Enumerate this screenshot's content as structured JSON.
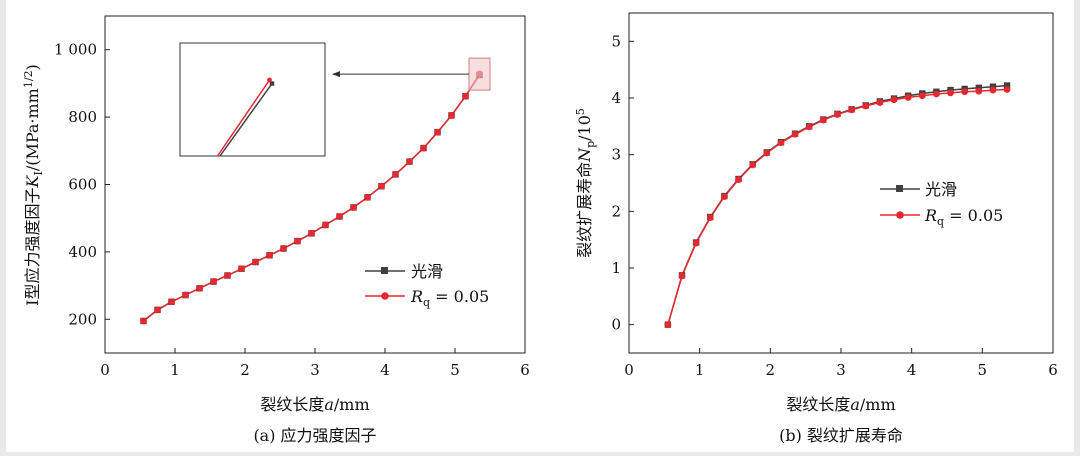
{
  "chart_data": [
    {
      "type": "line",
      "caption": "(a) 应力强度因子",
      "xlabel_main": "裂纹长度",
      "xlabel_var": "a",
      "xlabel_unit": "/mm",
      "ylabel_main": "I型应力强度因子",
      "ylabel_var": "K",
      "ylabel_sub": "I",
      "ylabel_unit": "/(MPa·mm",
      "ylabel_sup": "1/2",
      "ylabel_close": ")",
      "xlim": [
        0,
        6
      ],
      "ylim": [
        100,
        1100
      ],
      "xticks": [
        0,
        1,
        2,
        3,
        4,
        5,
        6
      ],
      "yticks": [
        200,
        400,
        600,
        800,
        1000
      ],
      "ytick_labels": [
        "200",
        "400",
        "600",
        "800",
        "1 000"
      ],
      "legend_placement": "lower-right",
      "series": [
        {
          "name": "光滑",
          "color": "#404040",
          "marker": "square",
          "x": [
            0.55,
            0.75,
            0.95,
            1.15,
            1.35,
            1.55,
            1.75,
            1.95,
            2.15,
            2.35,
            2.55,
            2.75,
            2.95,
            3.15,
            3.35,
            3.55,
            3.75,
            3.95,
            4.15,
            4.35,
            4.55,
            4.75,
            4.95,
            5.15,
            5.35
          ],
          "y": [
            195,
            228,
            252,
            272,
            292,
            312,
            330,
            350,
            370,
            390,
            410,
            432,
            455,
            480,
            505,
            532,
            562,
            595,
            630,
            668,
            708,
            755,
            805,
            862,
            925
          ]
        },
        {
          "name_var": "R",
          "name_sub": "q",
          "name_rest": " = 0.05",
          "color": "#e8282f",
          "marker": "circle",
          "x": [
            0.55,
            0.75,
            0.95,
            1.15,
            1.35,
            1.55,
            1.75,
            1.95,
            2.15,
            2.35,
            2.55,
            2.75,
            2.95,
            3.15,
            3.35,
            3.55,
            3.75,
            3.95,
            4.15,
            4.35,
            4.55,
            4.75,
            4.95,
            5.15,
            5.35
          ],
          "y": [
            195,
            228,
            252,
            272,
            292,
            312,
            330,
            350,
            370,
            390,
            410,
            432,
            455,
            480,
            505,
            532,
            562,
            595,
            630,
            668,
            708,
            755,
            805,
            862,
            928
          ]
        }
      ],
      "inset": {
        "zoom_x": [
          5.2,
          5.5
        ],
        "zoom_y": [
          880,
          975
        ]
      }
    },
    {
      "type": "line",
      "caption": "(b) 裂纹扩展寿命",
      "xlabel_main": "裂纹长度",
      "xlabel_var": "a",
      "xlabel_unit": "/mm",
      "ylabel_main": "裂纹扩展寿命",
      "ylabel_var": "N",
      "ylabel_sub": "p",
      "ylabel_unit": "/10",
      "ylabel_sup": "5",
      "xlim": [
        0,
        6
      ],
      "ylim": [
        -0.5,
        5.5
      ],
      "xticks": [
        0,
        1,
        2,
        3,
        4,
        5,
        6
      ],
      "yticks": [
        0,
        1,
        2,
        3,
        4,
        5
      ],
      "legend_placement": "center-right",
      "series": [
        {
          "name": "光滑",
          "color": "#404040",
          "marker": "square",
          "x": [
            0.55,
            0.75,
            0.95,
            1.15,
            1.35,
            1.55,
            1.75,
            1.95,
            2.15,
            2.35,
            2.55,
            2.75,
            2.95,
            3.15,
            3.35,
            3.55,
            3.75,
            3.95,
            4.15,
            4.35,
            4.55,
            4.75,
            4.95,
            5.15,
            5.35
          ],
          "y": [
            0.0,
            0.87,
            1.45,
            1.9,
            2.27,
            2.57,
            2.83,
            3.04,
            3.22,
            3.37,
            3.5,
            3.62,
            3.72,
            3.8,
            3.87,
            3.94,
            3.99,
            4.04,
            4.08,
            4.11,
            4.14,
            4.16,
            4.18,
            4.2,
            4.22
          ]
        },
        {
          "name_var": "R",
          "name_sub": "q",
          "name_rest": " = 0.05",
          "color": "#e8282f",
          "marker": "circle",
          "x": [
            0.55,
            0.75,
            0.95,
            1.15,
            1.35,
            1.55,
            1.75,
            1.95,
            2.15,
            2.35,
            2.55,
            2.75,
            2.95,
            3.15,
            3.35,
            3.55,
            3.75,
            3.95,
            4.15,
            4.35,
            4.55,
            4.75,
            4.95,
            5.15,
            5.35
          ],
          "y": [
            0.0,
            0.86,
            1.44,
            1.89,
            2.26,
            2.56,
            2.82,
            3.03,
            3.21,
            3.36,
            3.49,
            3.61,
            3.71,
            3.79,
            3.86,
            3.92,
            3.97,
            4.01,
            4.04,
            4.07,
            4.09,
            4.11,
            4.12,
            4.14,
            4.15
          ]
        }
      ]
    }
  ]
}
